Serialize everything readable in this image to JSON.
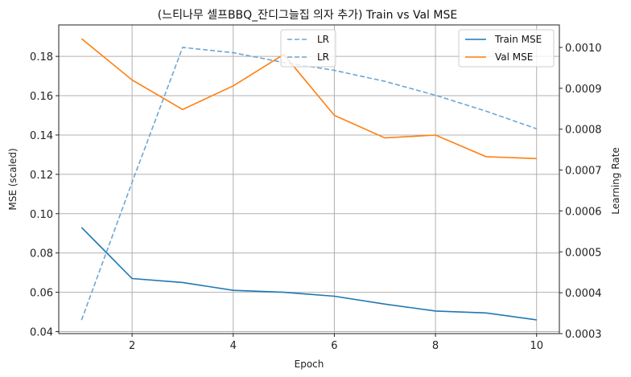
{
  "chart_data": {
    "type": "line",
    "title": "(느티나무 셀프BBQ_잔디그늘집 의자 추가) Train vs Val MSE",
    "xlabel": "Epoch",
    "ylabel_left": "MSE (scaled)",
    "ylabel_right": "Learning Rate",
    "x": [
      1,
      2,
      3,
      4,
      5,
      6,
      7,
      8,
      9,
      10
    ],
    "xlim": [
      0.55,
      10.45
    ],
    "ylim_left": [
      0.039,
      0.196
    ],
    "ylim_right": [
      0.0003,
      0.001055
    ],
    "xticks": [
      2,
      4,
      6,
      8,
      10
    ],
    "yticks_left": [
      0.04,
      0.06,
      0.08,
      0.1,
      0.12,
      0.14,
      0.16,
      0.18
    ],
    "yticks_left_labels": [
      "0.04",
      "0.06",
      "0.08",
      "0.10",
      "0.12",
      "0.14",
      "0.16",
      "0.18"
    ],
    "yticks_right": [
      0.0003,
      0.0004,
      0.0005,
      0.0006,
      0.0007,
      0.0008,
      0.0009,
      0.001
    ],
    "yticks_right_labels": [
      "0.0003",
      "0.0004",
      "0.0005",
      "0.0006",
      "0.0007",
      "0.0008",
      "0.0009",
      "0.0010"
    ],
    "grid": true,
    "series": [
      {
        "name": "Train MSE",
        "axis": "left",
        "color": "#1f77b4",
        "style": "solid",
        "values": [
          0.093,
          0.067,
          0.065,
          0.061,
          0.06,
          0.058,
          0.054,
          0.0505,
          0.0495,
          0.046
        ]
      },
      {
        "name": "Val MSE",
        "axis": "left",
        "color": "#ff7f0e",
        "style": "solid",
        "values": [
          0.189,
          0.168,
          0.153,
          0.165,
          0.181,
          0.15,
          0.1385,
          0.14,
          0.129,
          0.128
        ]
      },
      {
        "name": "LR",
        "axis": "right",
        "color": "#6fa6d2",
        "style": "dashed",
        "values": [
          0.000333,
          0.00067,
          0.001,
          0.000987,
          0.000963,
          0.000944,
          0.000917,
          0.000883,
          0.000844,
          0.000801
        ]
      }
    ],
    "legends": [
      {
        "placement": "top-center",
        "entries": [
          "LR",
          "LR"
        ],
        "colors": [
          "#6fa6d2",
          "#6fa6d2"
        ],
        "styles": [
          "dashed",
          "dashed"
        ]
      },
      {
        "placement": "top-right",
        "entries": [
          "Train MSE",
          "Val MSE"
        ],
        "colors": [
          "#1f77b4",
          "#ff7f0e"
        ],
        "styles": [
          "solid",
          "solid"
        ]
      }
    ]
  }
}
